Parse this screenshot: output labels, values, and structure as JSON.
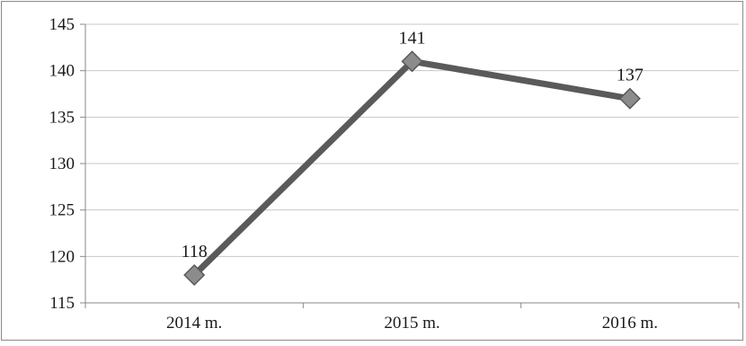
{
  "chart_data": {
    "type": "line",
    "title": "",
    "xlabel": "",
    "ylabel": "",
    "categories": [
      "2014 m.",
      "2015 m.",
      "2016 m."
    ],
    "series": [
      {
        "values": [
          118,
          141,
          137
        ],
        "data_labels": [
          "118",
          "141",
          "137"
        ],
        "color": "#5a5a5a",
        "marker": "diamond",
        "marker_color": "#8c8c8c"
      }
    ],
    "ylim": [
      115,
      145
    ],
    "yticks": [
      115,
      120,
      125,
      130,
      135,
      140,
      145
    ],
    "ytick_labels": [
      "115",
      "120",
      "125",
      "130",
      "135",
      "140",
      "145"
    ],
    "grid": true,
    "legend": "none"
  }
}
